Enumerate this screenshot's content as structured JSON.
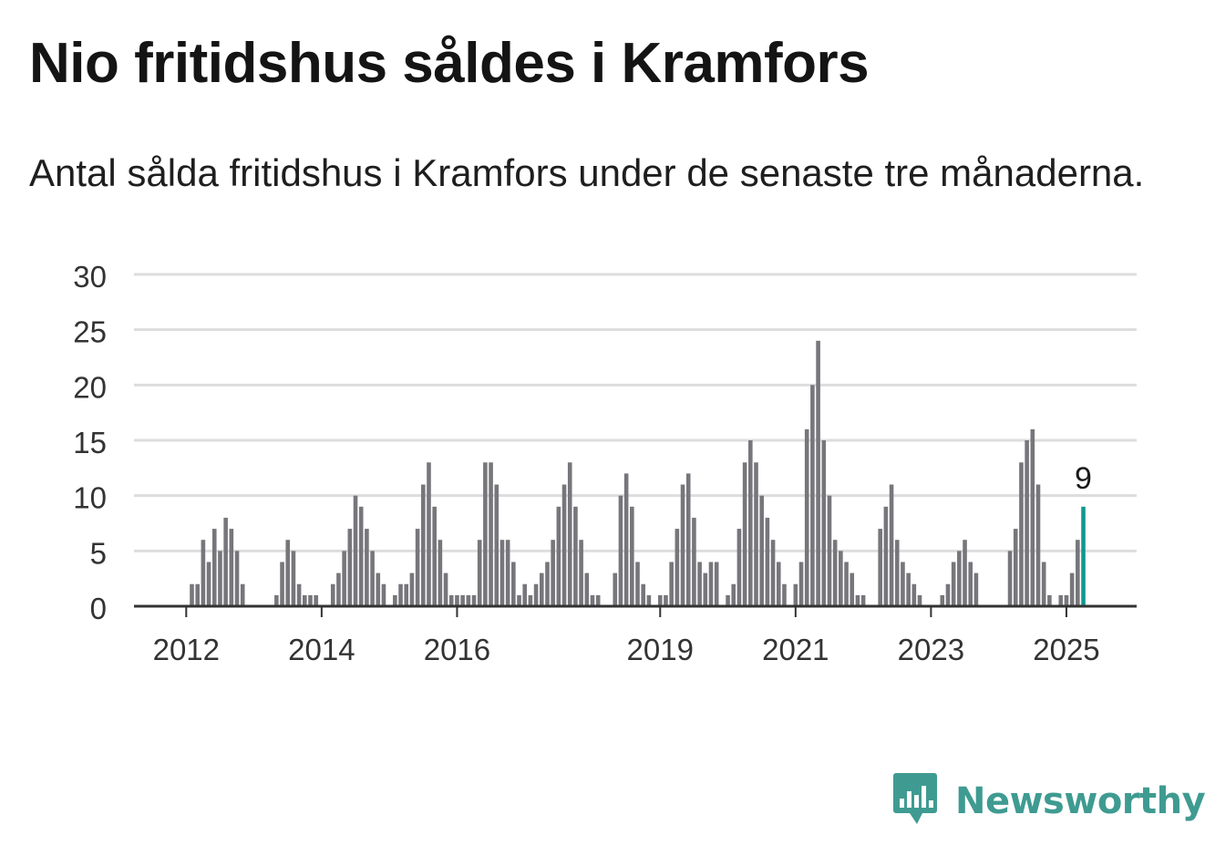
{
  "title": "Nio fritidshus såldes i Kramfors",
  "subtitle": "Antal sålda fritidshus i Kramfors under de senaste tre månaderna.",
  "brand": {
    "name": "Newsworthy",
    "color": "#3f9b91",
    "icon": "bar-chart-speech-bubble-icon"
  },
  "chart_data": {
    "type": "bar",
    "x_start": "2011-08",
    "interval": "month",
    "values": [
      0,
      0,
      0,
      0,
      0,
      0,
      0,
      0,
      0,
      2,
      2,
      6,
      4,
      7,
      5,
      8,
      7,
      5,
      2,
      0,
      0,
      0,
      0,
      0,
      1,
      4,
      6,
      5,
      2,
      1,
      1,
      1,
      0,
      0,
      2,
      3,
      5,
      7,
      10,
      9,
      7,
      5,
      3,
      2,
      0,
      1,
      2,
      2,
      3,
      7,
      11,
      13,
      9,
      6,
      3,
      1,
      1,
      1,
      1,
      1,
      6,
      13,
      13,
      11,
      6,
      6,
      4,
      1,
      2,
      1,
      2,
      3,
      4,
      6,
      9,
      11,
      13,
      9,
      6,
      3,
      1,
      1,
      0,
      0,
      3,
      10,
      12,
      9,
      4,
      2,
      1,
      0,
      1,
      1,
      4,
      7,
      11,
      12,
      8,
      4,
      3,
      4,
      4,
      0,
      1,
      2,
      7,
      13,
      15,
      13,
      10,
      8,
      6,
      4,
      2,
      0,
      2,
      4,
      16,
      20,
      24,
      15,
      10,
      6,
      5,
      4,
      3,
      1,
      1,
      0,
      0,
      7,
      9,
      11,
      6,
      4,
      3,
      2,
      1,
      0,
      0,
      0,
      1,
      2,
      4,
      5,
      6,
      4,
      3,
      0,
      0,
      0,
      0,
      0,
      5,
      7,
      13,
      15,
      16,
      11,
      4,
      1,
      0,
      1,
      1,
      3,
      6,
      9
    ],
    "highlight": {
      "index": 167,
      "value": 9,
      "label": "9",
      "color": "#11998e"
    },
    "bar_color": "#77767b",
    "ylim": [
      0,
      30
    ],
    "yticks": [
      0,
      5,
      10,
      15,
      20,
      25,
      30
    ],
    "xticks": [
      {
        "label": "2012",
        "index": 8
      },
      {
        "label": "2014",
        "index": 32
      },
      {
        "label": "2016",
        "index": 56
      },
      {
        "label": "2019",
        "index": 92
      },
      {
        "label": "2021",
        "index": 116
      },
      {
        "label": "2023",
        "index": 140
      },
      {
        "label": "2025",
        "index": 164
      }
    ],
    "grid": true,
    "xlabel": "",
    "ylabel": ""
  }
}
